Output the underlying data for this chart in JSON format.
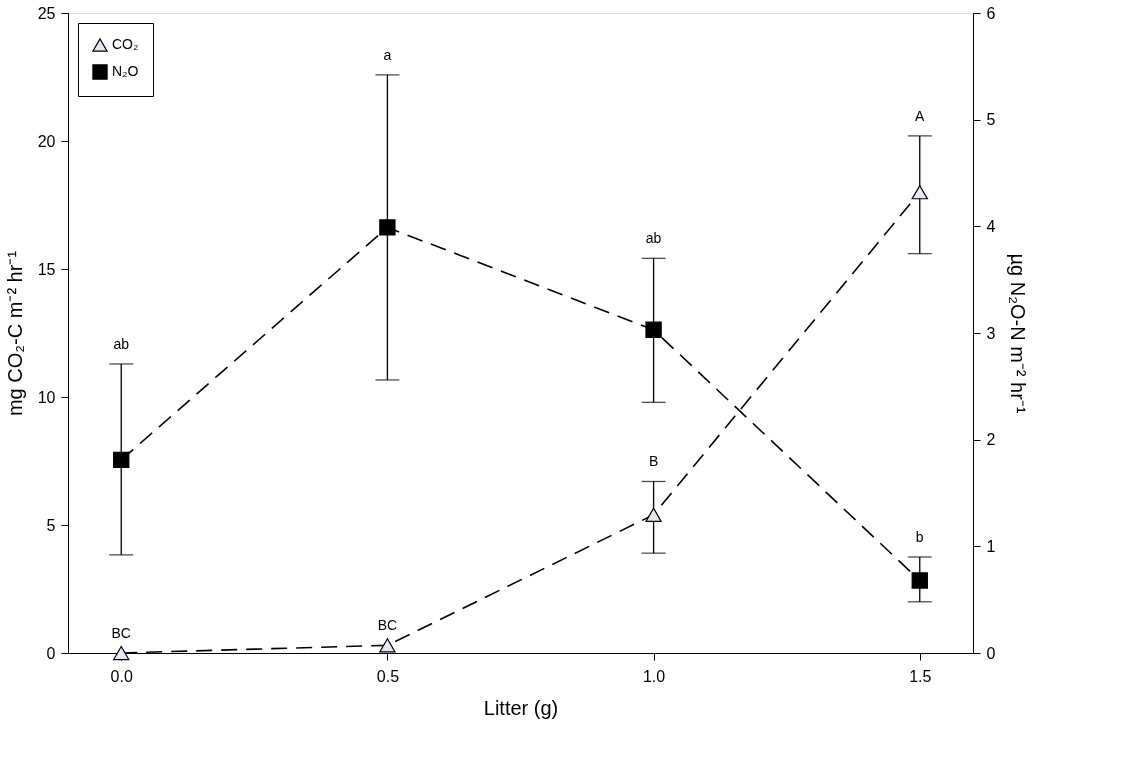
{
  "chart_data": {
    "type": "line",
    "xlabel": "Litter (g)",
    "ylabel": "mg CO₂-C m⁻² hr⁻¹",
    "y2label": "µg N₂O-N m⁻² hr⁻¹",
    "x": [
      0,
      0.5,
      1.0,
      1.5
    ],
    "xlim": [
      -0.1,
      1.6
    ],
    "xticks": [
      {
        "value": 0,
        "label": "0.0"
      },
      {
        "value": 0.5,
        "label": "0.5"
      },
      {
        "value": 1,
        "label": "1.0"
      },
      {
        "value": 1.5,
        "label": "1.5"
      }
    ],
    "ylim": [
      0,
      25
    ],
    "yticks": [
      0,
      5,
      10,
      15,
      20,
      25
    ],
    "y2lim": [
      0,
      6
    ],
    "y2ticks": [
      0,
      1,
      2,
      3,
      4,
      5,
      6
    ],
    "series": [
      {
        "name": "CO₂",
        "color": "#e6e6f5",
        "marker": "triangle",
        "values": [
          0.0,
          0.3,
          5.4,
          18.0
        ],
        "errors": [
          null,
          null,
          [
            3.9,
            6.7
          ],
          [
            15.6,
            20.2
          ]
        ]
      },
      {
        "name": "N₂O",
        "color": "#000000",
        "marker": "square",
        "axis": "y2",
        "values": [
          1.81,
          3.99,
          3.03,
          0.68
        ],
        "errors": [
          [
            0.92,
            2.71
          ],
          [
            2.56,
            5.42
          ],
          [
            2.35,
            3.7
          ],
          [
            0.48,
            0.9
          ]
        ]
      }
    ],
    "line_style": "dashed",
    "grid": false,
    "legend": "top left",
    "annotations": [
      "BC",
      "BC",
      "B",
      "A",
      "ab",
      "a",
      "ab",
      "b"
    ]
  }
}
